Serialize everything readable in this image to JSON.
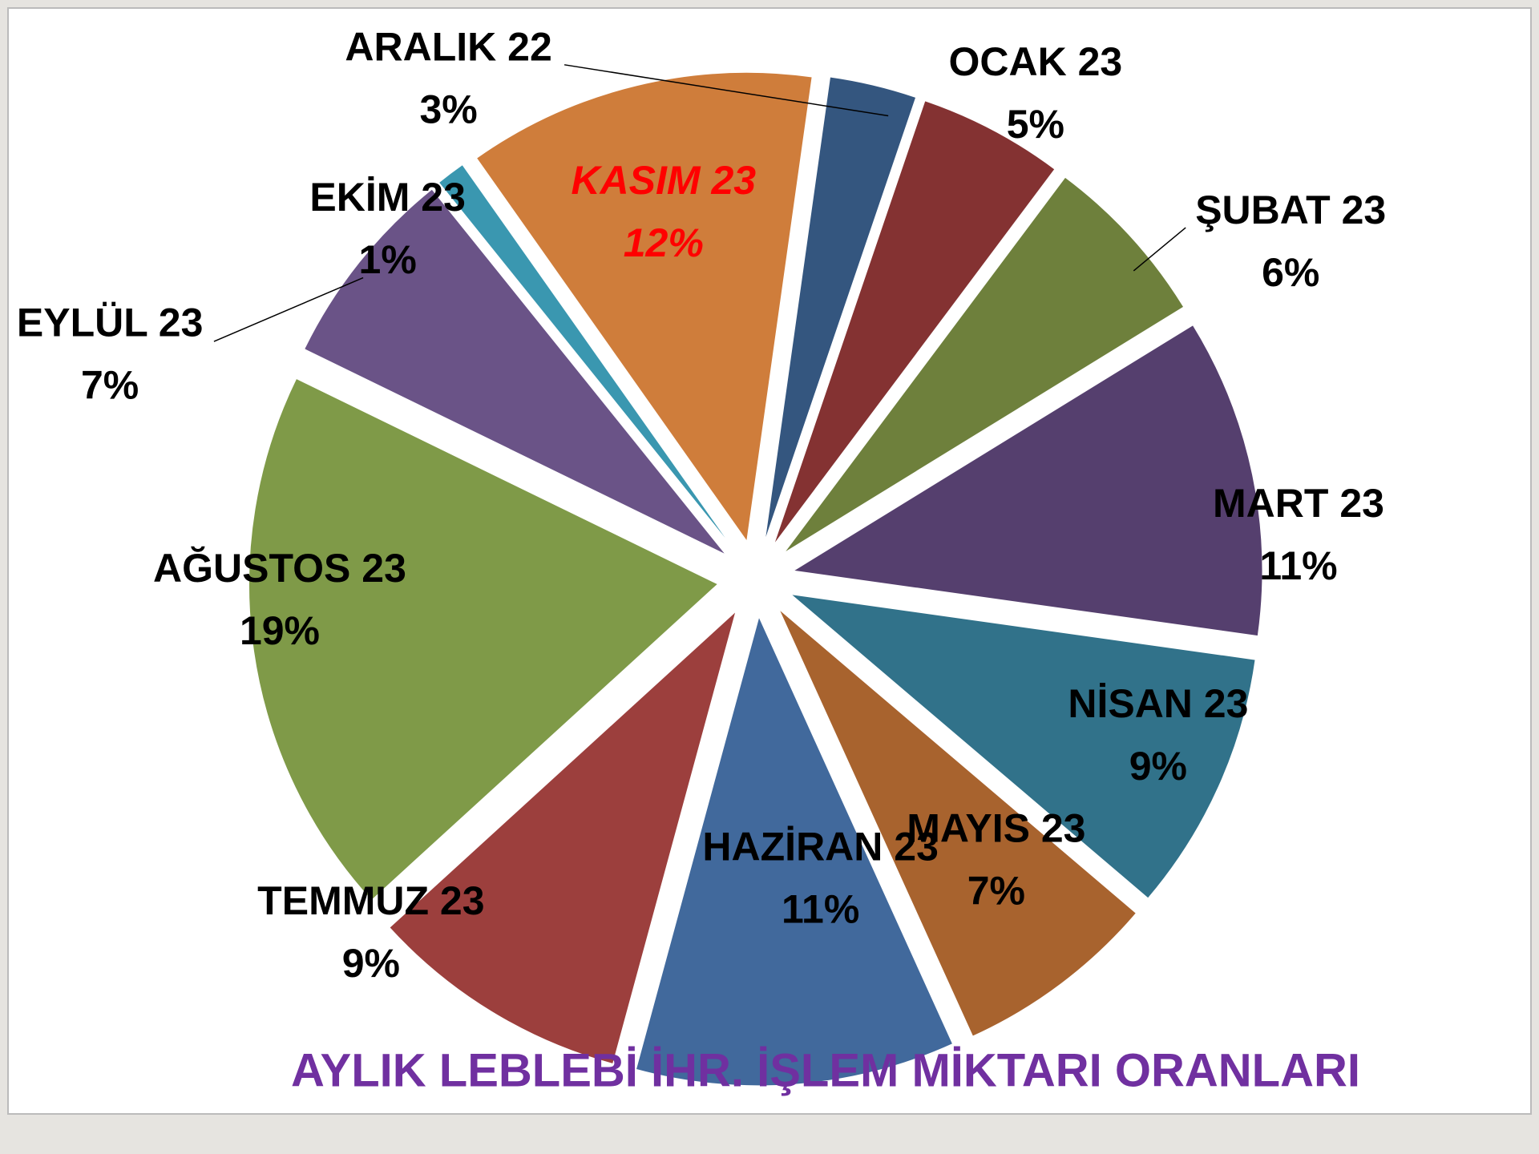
{
  "chart_data": {
    "type": "pie",
    "title": "AYLIK LEBLEBİ İHR. İŞLEM MİKTARI ORANLARI",
    "categories": [
      "ARALIK 22",
      "OCAK 23",
      "ŞUBAT 23",
      "MART 23",
      "NİSAN 23",
      "MAYIS 23",
      "HAZİRAN 23",
      "TEMMUZ 23",
      "AĞUSTOS 23",
      "EYLÜL 23",
      "EKİM 23",
      "KASIM 23"
    ],
    "values": [
      3,
      5,
      6,
      11,
      9,
      7,
      11,
      9,
      19,
      7,
      1,
      12
    ],
    "value_labels": [
      "3%",
      "5%",
      "6%",
      "11%",
      "9%",
      "7%",
      "11%",
      "9%",
      "19%",
      "7%",
      "1%",
      "12%"
    ],
    "colors": [
      "#34567f",
      "#843232",
      "#6e803c",
      "#553f6e",
      "#31728a",
      "#a8632e",
      "#41699c",
      "#9c3f3d",
      "#7f9a48",
      "#6a5387",
      "#3a97b0",
      "#cf7d3b"
    ],
    "label_colors": [
      "#000000",
      "#000000",
      "#000000",
      "#000000",
      "#000000",
      "#000000",
      "#000000",
      "#000000",
      "#000000",
      "#000000",
      "#000000",
      "#ff0000"
    ],
    "label_styles": [
      "normal",
      "normal",
      "normal",
      "normal",
      "normal",
      "normal",
      "normal",
      "normal",
      "normal",
      "normal",
      "normal",
      "italic"
    ],
    "title_color": "#7030a0"
  }
}
